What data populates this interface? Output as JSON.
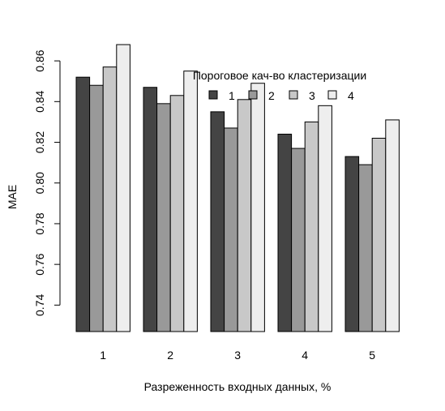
{
  "chart_data": {
    "type": "bar",
    "title": "",
    "xlabel": "Разреженность входных данных, %",
    "ylabel": "MAE",
    "categories": [
      "1",
      "2",
      "3",
      "4",
      "5"
    ],
    "series": [
      {
        "name": "1",
        "color": "#444444",
        "values": [
          0.852,
          0.847,
          0.835,
          0.824,
          0.813
        ]
      },
      {
        "name": "2",
        "color": "#999999",
        "values": [
          0.848,
          0.839,
          0.827,
          0.817,
          0.809
        ]
      },
      {
        "name": "3",
        "color": "#c8c8c8",
        "values": [
          0.857,
          0.843,
          0.841,
          0.83,
          0.822
        ]
      },
      {
        "name": "4",
        "color": "#eeeeee",
        "values": [
          0.868,
          0.855,
          0.849,
          0.838,
          0.831
        ]
      }
    ],
    "ylim": [
      0.727,
      0.87
    ],
    "yticks": [
      "0.74",
      "0.76",
      "0.78",
      "0.80",
      "0.82",
      "0.84",
      "0.86"
    ],
    "legend": {
      "title": "Пороговое кач-во кластеризации",
      "position": "top-right"
    },
    "grid": false
  }
}
